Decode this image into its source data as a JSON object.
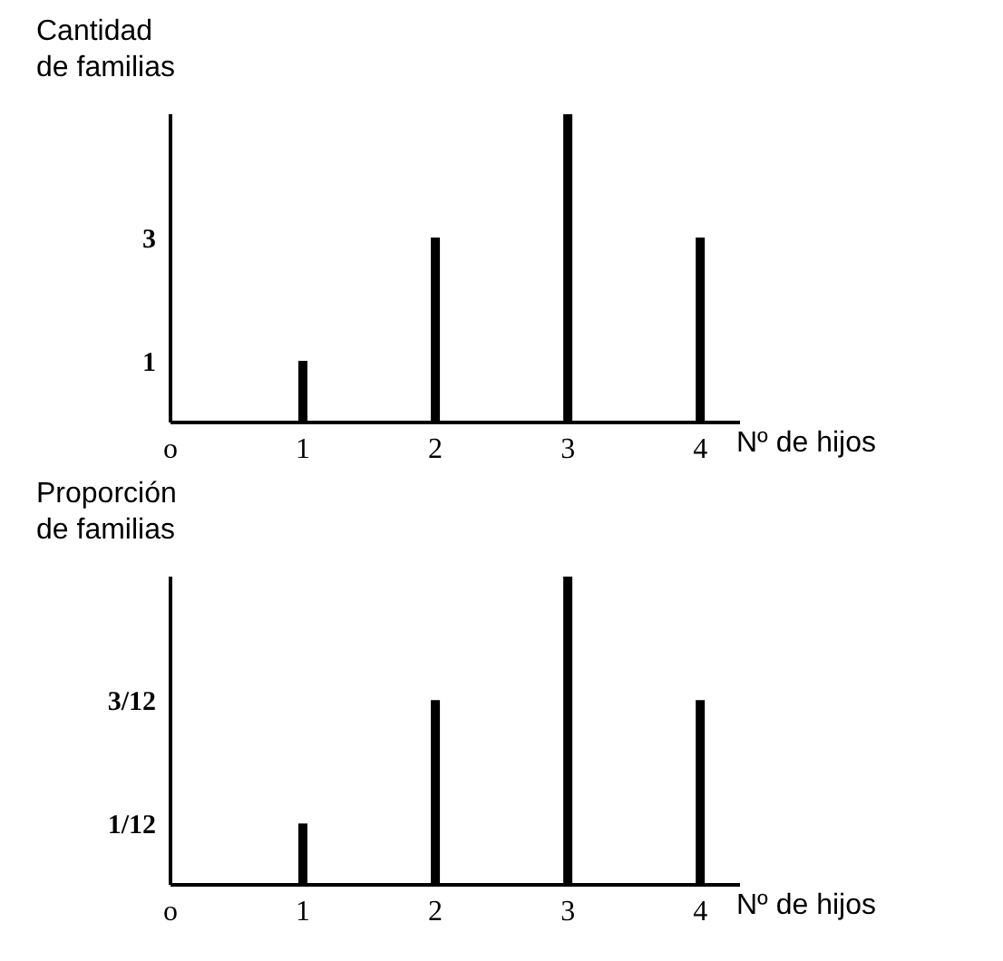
{
  "chart_data": [
    {
      "type": "bar",
      "ylabel": "Cantidad\nde familias",
      "xlabel": "Nº de hijos",
      "x": [
        1,
        2,
        3,
        4
      ],
      "values": [
        1,
        3,
        5,
        3
      ],
      "color": "#000000",
      "xlim": [
        0,
        4.3
      ],
      "xticks": [
        {
          "value": 0,
          "label": "o"
        },
        1,
        2,
        3,
        4
      ],
      "ylim": [
        0,
        5
      ],
      "yticks": [
        1,
        3
      ]
    },
    {
      "type": "bar",
      "ylabel": "Proporción\nde familias",
      "xlabel": "Nº de hijos",
      "x": [
        1,
        2,
        3,
        4
      ],
      "values": [
        0.083,
        0.25,
        0.417,
        0.25
      ],
      "color": "#000000",
      "xlim": [
        0,
        4.3
      ],
      "xticks": [
        {
          "value": 0,
          "label": "o"
        },
        1,
        2,
        3,
        4
      ],
      "ylim": [
        0,
        0.417
      ],
      "yticks": [
        {
          "value": 0.083,
          "label": "1/12"
        },
        {
          "value": 0.25,
          "label": "3/12"
        }
      ]
    }
  ]
}
